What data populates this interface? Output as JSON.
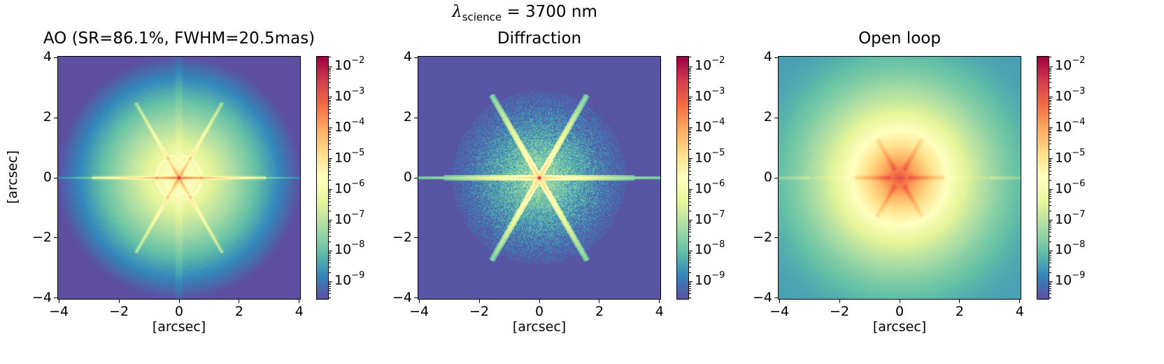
{
  "chart_data": {
    "type": "heatmap",
    "suptitle": {
      "symbol": "λ",
      "subscript": "science",
      "text": "= 3700 nm"
    },
    "colormap": "Spectral_r",
    "colormap_colors": [
      "#5e4fa2",
      "#3288bd",
      "#66c2a5",
      "#abdda4",
      "#e6f598",
      "#ffffbf",
      "#fee08b",
      "#fdae61",
      "#f46d43",
      "#d53e4f",
      "#9e0142"
    ],
    "color_scale": "log",
    "color_range": [
      2.6e-10,
      0.022
    ],
    "colorbar_ticks": [
      "10^-2",
      "10^-3",
      "10^-4",
      "10^-5",
      "10^-6",
      "10^-7",
      "10^-8",
      "10^-9"
    ],
    "colorbar_tick_exponents": [
      -2,
      -3,
      -4,
      -5,
      -6,
      -7,
      -8,
      -9
    ],
    "extent": [
      -4.05,
      4.05
    ],
    "axis_ticks": [
      "−4",
      "−2",
      "0",
      "2",
      "4"
    ],
    "axis_tick_values": [
      -4,
      -2,
      0,
      2,
      4
    ],
    "xlabel": "[arcsec]",
    "ylabel": "[arcsec]",
    "panels": [
      {
        "title": "AO (SR=86.1%, FWHM=20.5mas)",
        "kind": "ao",
        "peak": 0.022
      },
      {
        "title": "Diffraction",
        "kind": "diffraction",
        "peak": 0.022
      },
      {
        "title": "Open loop",
        "kind": "openloop",
        "peak": 0.001
      }
    ]
  }
}
